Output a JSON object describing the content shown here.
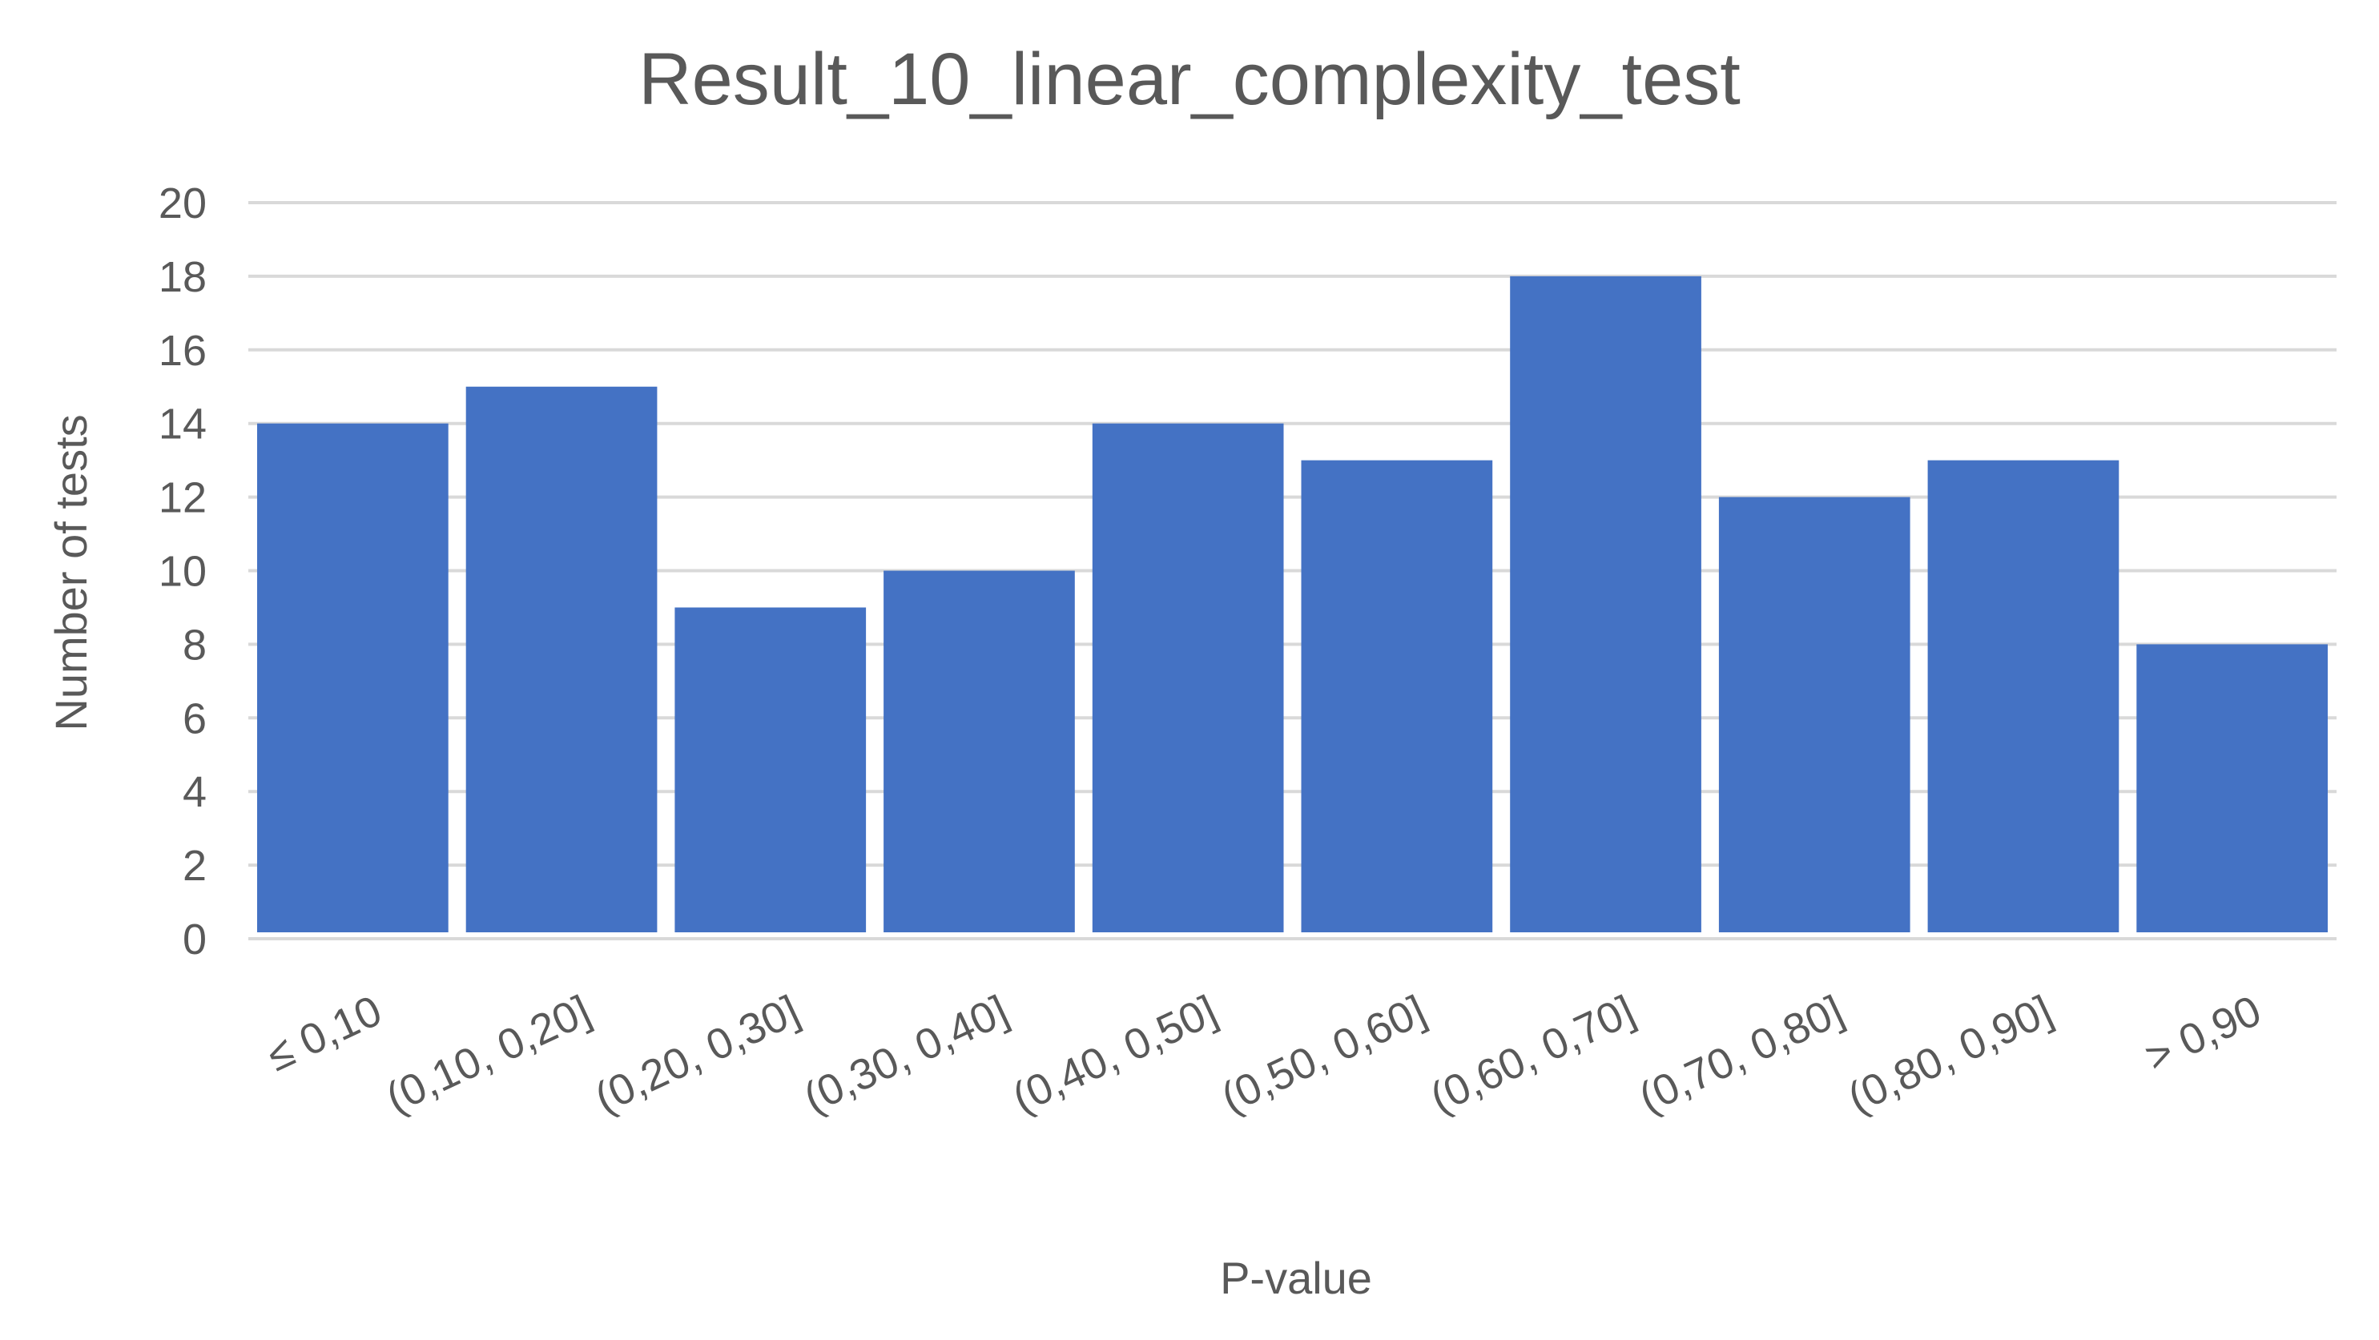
{
  "chart_data": {
    "type": "bar",
    "title": "Result_10_linear_complexity_test",
    "xlabel": "P-value",
    "ylabel": "Number of tests",
    "categories": [
      "≤ 0,10",
      "(0,10, 0,20]",
      "(0,20, 0,30]",
      "(0,30, 0,40]",
      "(0,40, 0,50]",
      "(0,50, 0,60]",
      "(0,60, 0,70]",
      "(0,70, 0,80]",
      "(0,80, 0,90]",
      "> 0,90"
    ],
    "values": [
      14,
      15,
      9,
      10,
      14,
      13,
      18,
      12,
      13,
      8
    ],
    "ylim": [
      0,
      20
    ],
    "yticks": [
      "0",
      "2",
      "4",
      "6",
      "8",
      "10",
      "12",
      "14",
      "16",
      "18",
      "20"
    ],
    "grid": true,
    "legend": "none",
    "colors": {
      "bar": "#4472C4",
      "grid": "#D9D9D9",
      "text": "#595959"
    }
  }
}
